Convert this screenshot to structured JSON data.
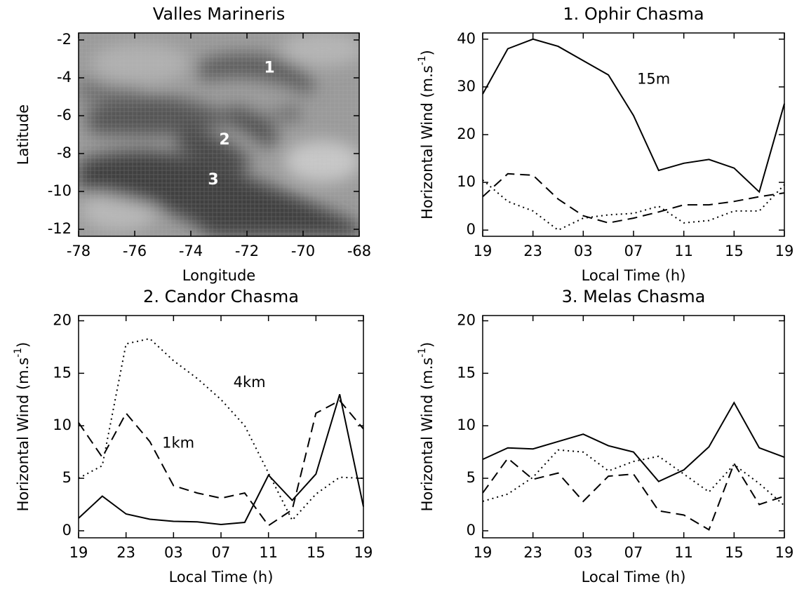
{
  "chart_data": [
    {
      "type": "map",
      "title": "Valles Marineris",
      "x_label": "Longitude",
      "y_label": "Latitude",
      "xlim": [
        -78,
        -68
      ],
      "xticks": [
        -78,
        -76,
        -74,
        -72,
        -70,
        -68
      ],
      "ylim": [
        -12.37,
        -1.63
      ],
      "yticks": [
        -12,
        -10,
        -8,
        -6,
        -4,
        -2
      ],
      "annotations": [
        {
          "text": "1",
          "x": -71.2,
          "y": -3.5
        },
        {
          "text": "2",
          "x": -72.8,
          "y": -7.3
        },
        {
          "text": "3",
          "x": -73.2,
          "y": -9.4
        }
      ]
    },
    {
      "type": "line",
      "title": "1. Ophir Chasma",
      "x_label": "Local Time (h)",
      "y_label": "Horizontal Wind (m.s",
      "y_label_sup": "-1",
      "y_label_end": ")",
      "categories": [
        "19",
        null,
        "23",
        null,
        "03",
        null,
        "07",
        null,
        "11",
        null,
        "15",
        null,
        "19"
      ],
      "ylim": [
        -1.3,
        41.3
      ],
      "yticks": [
        0,
        10,
        20,
        30,
        40
      ],
      "series": [
        {
          "style": "solid",
          "color": "#000",
          "values": [
            28.5,
            38,
            40,
            38.5,
            35.5,
            32.5,
            24,
            12.5,
            14,
            14.8,
            13,
            8,
            26.5
          ]
        },
        {
          "style": "dashed",
          "color": "#000",
          "values": [
            7,
            11.8,
            11.5,
            6.5,
            3,
            1.5,
            2.5,
            3.8,
            5.3,
            5.3,
            6,
            7,
            7.8
          ]
        },
        {
          "style": "dotted",
          "color": "#000",
          "values": [
            10.5,
            6,
            4,
            0,
            2.5,
            3.2,
            3.5,
            5,
            1.5,
            2,
            4,
            4,
            9.5
          ]
        }
      ],
      "annotations": [
        {
          "text": "15m",
          "x": 6.8,
          "y": 31.5
        }
      ]
    },
    {
      "type": "line",
      "title": "2. Candor Chasma",
      "x_label": "Local Time (h)",
      "y_label": "Horizontal Wind (m.s",
      "y_label_sup": "-1",
      "y_label_end": ")",
      "categories": [
        "19",
        null,
        "23",
        null,
        "03",
        null,
        "07",
        null,
        "11",
        null,
        "15",
        null,
        "19"
      ],
      "ylim": [
        -0.67,
        20.5
      ],
      "yticks": [
        0,
        5,
        10,
        15,
        20
      ],
      "series": [
        {
          "style": "solid",
          "color": "#000",
          "values": [
            1.2,
            3.3,
            1.6,
            1.1,
            0.9,
            0.85,
            0.6,
            0.8,
            5.3,
            2.9,
            5.4,
            13,
            2.3
          ]
        },
        {
          "style": "dashed",
          "color": "#000",
          "values": [
            10.3,
            7,
            11.2,
            8.5,
            4.3,
            3.6,
            3.1,
            3.6,
            0.5,
            2,
            11.2,
            12.4,
            9.7
          ]
        },
        {
          "style": "dotted",
          "color": "#000",
          "values": [
            5,
            6.2,
            17.8,
            18.3,
            16.2,
            14.5,
            12.5,
            10,
            5.5,
            1,
            3.5,
            5.1,
            5
          ]
        }
      ],
      "annotations": [
        {
          "text": "4km",
          "x": 7.2,
          "y": 14.1
        },
        {
          "text": "1km",
          "x": 4.2,
          "y": 8.3
        }
      ]
    },
    {
      "type": "line",
      "title": "3. Melas Chasma",
      "x_label": "Local Time (h)",
      "y_label": "Horizontal Wind (m.s",
      "y_label_sup": "-1",
      "y_label_end": ")",
      "categories": [
        "19",
        null,
        "23",
        null,
        "03",
        null,
        "07",
        null,
        "11",
        null,
        "15",
        null,
        "19"
      ],
      "ylim": [
        -0.67,
        20.5
      ],
      "yticks": [
        0,
        5,
        10,
        15,
        20
      ],
      "series": [
        {
          "style": "solid",
          "color": "#000",
          "values": [
            6.8,
            7.9,
            7.8,
            8.5,
            9.2,
            8.1,
            7.5,
            4.7,
            5.8,
            8,
            12.2,
            7.9,
            7
          ]
        },
        {
          "style": "dashed",
          "color": "#000",
          "values": [
            3.6,
            6.9,
            4.9,
            5.5,
            2.8,
            5.2,
            5.4,
            1.9,
            1.5,
            0.1,
            6.4,
            2.5,
            3.3
          ]
        },
        {
          "style": "dotted",
          "color": "#000",
          "values": [
            2.8,
            3.5,
            5.1,
            7.7,
            7.5,
            5.7,
            6.6,
            7.1,
            5.4,
            3.7,
            6.3,
            4.5,
            2.4
          ]
        }
      ],
      "annotations": []
    }
  ]
}
